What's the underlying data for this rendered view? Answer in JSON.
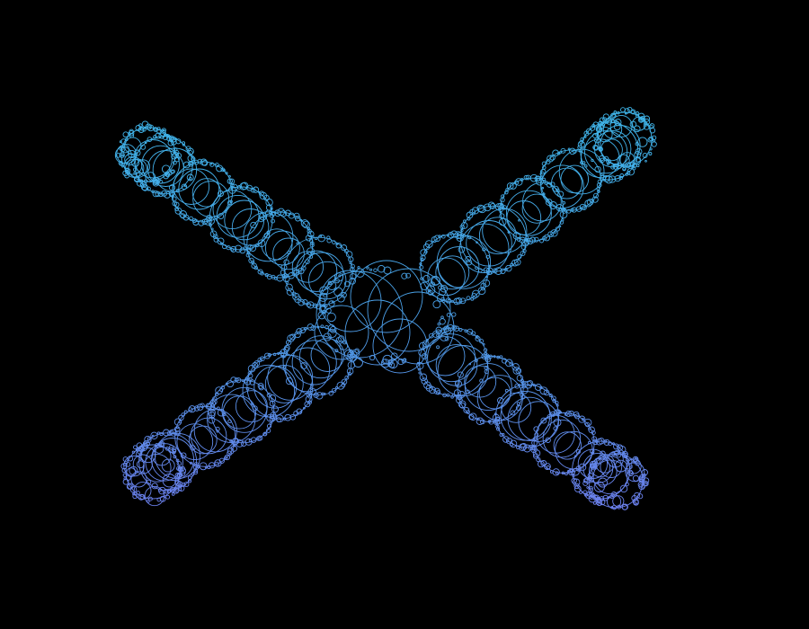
{
  "canvas": {
    "background": "#000000",
    "subject": "x-shaped-chain-of-circles-fractal"
  },
  "palette": {
    "top": "#3fb6ea",
    "middle": "#4a9ee6",
    "bottom": "#6f7ff0"
  }
}
